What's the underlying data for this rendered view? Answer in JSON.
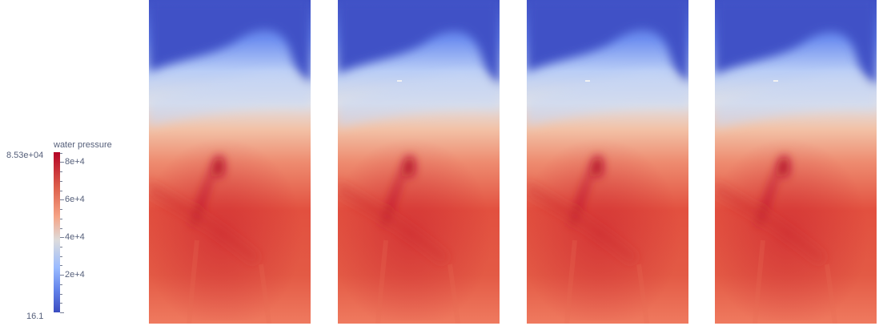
{
  "colorbar": {
    "title": "water pressure",
    "max_label": "8.53e+04",
    "min_label": "16.1",
    "range": [
      16.1,
      85300
    ],
    "tick_labels": [
      {
        "text": "8e+4",
        "value": 80000
      },
      {
        "text": "6e+4",
        "value": 60000
      },
      {
        "text": "4e+4",
        "value": 40000
      },
      {
        "text": "2e+4",
        "value": 20000
      }
    ],
    "colormap": [
      "#3b4cc0",
      "#6282ea",
      "#9abbff",
      "#dddcdc",
      "#f6a385",
      "#dd5f4b",
      "#b40426"
    ]
  },
  "panels": [
    {
      "name": "panel-1"
    },
    {
      "name": "panel-2"
    },
    {
      "name": "panel-3"
    },
    {
      "name": "panel-4"
    }
  ],
  "colors": {
    "low": "#3f51c6",
    "mid": "#dfe0e6",
    "high": "#e2503f",
    "peak": "#b50f2a"
  }
}
